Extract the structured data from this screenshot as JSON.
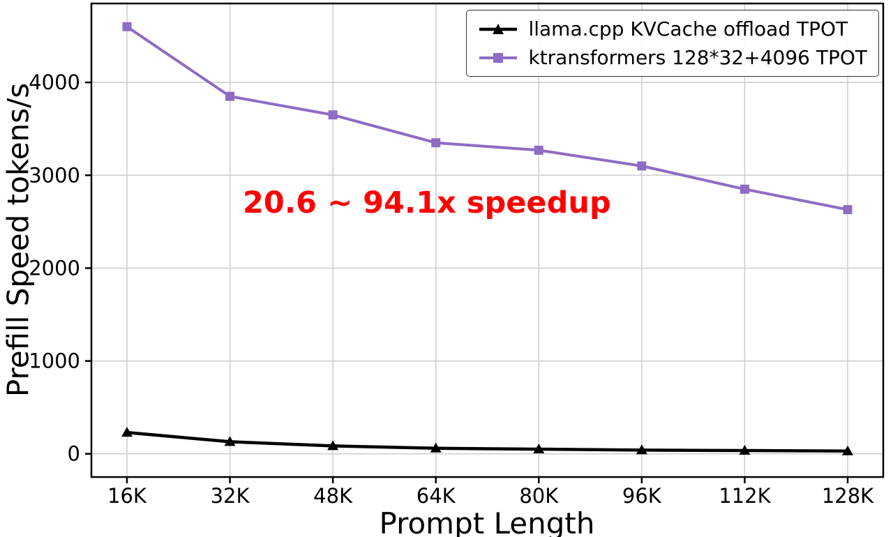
{
  "chart_data": {
    "type": "line",
    "title": "",
    "xlabel": "Prompt Length",
    "ylabel": "Prefill Speed tokens/s",
    "categories": [
      "16K",
      "32K",
      "48K",
      "64K",
      "80K",
      "96K",
      "112K",
      "128K"
    ],
    "yticks": [
      0,
      1000,
      2000,
      3000,
      4000
    ],
    "ylim": [
      -250,
      4850
    ],
    "grid": true,
    "grid_color": "#cccccc",
    "axis_color": "#000000",
    "legend_position": "top-right",
    "series": [
      {
        "id": "llamacpp",
        "name": "llama.cpp KVCache offload TPOT",
        "color": "#000000",
        "marker": "triangle",
        "values": [
          230,
          130,
          85,
          60,
          50,
          40,
          35,
          30
        ]
      },
      {
        "id": "ktransformers",
        "name": "ktransformers 128*32+4096 TPOT",
        "color": "#8e6cc3",
        "marker": "square",
        "values": [
          4600,
          3850,
          3650,
          3350,
          3270,
          3100,
          2850,
          2630
        ]
      }
    ],
    "annotation": {
      "text": "20.6 ~ 94.1x speedup",
      "color": "#ff0000"
    }
  }
}
